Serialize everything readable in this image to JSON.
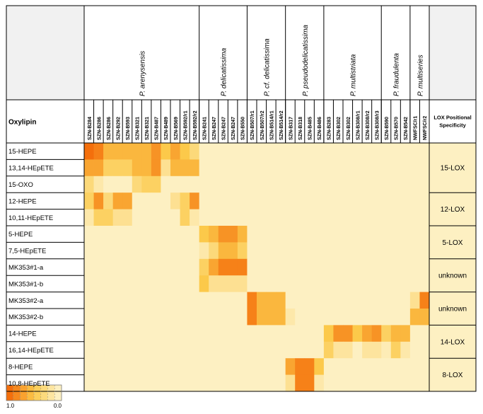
{
  "chart_data": {
    "type": "heatmap",
    "row_header": "Oxylipin",
    "right_header": [
      "LOX Positional",
      "Specificity"
    ],
    "columns": [
      "SZN-B284",
      "SZN-B286",
      "SZN-B286",
      "SZN-B292",
      "SZN-B593",
      "SZN-B321",
      "SZN-B321",
      "SZN-B487",
      "SZN-B489",
      "SZN-B569",
      "SZN-B592/r1",
      "SZN-B592/r2",
      "SZN-B241",
      "SZN-B247",
      "SZN-B247",
      "SZN-B247",
      "SZN-B550",
      "SZN-B507/r1",
      "SZN-B507/r2",
      "SZN-B514/r1",
      "SZN-B514/r2",
      "SZN-B317",
      "SZN-B318",
      "SZN-B485",
      "SZN-B486",
      "SZN-B283",
      "SZN-B302",
      "SZN-B302",
      "SZN-B308/r1",
      "SZN-B308/r2",
      "SZN-B308/r3",
      "SZN-B590",
      "SZN-B570",
      "SZN-B542",
      "NWFSC/r1",
      "NWFSC/r2"
    ],
    "species": [
      {
        "name": "P. arenysensis",
        "start": 0,
        "end": 11
      },
      {
        "name": "P. delicatissima",
        "start": 12,
        "end": 16
      },
      {
        "name": "P. cf. delicatissima",
        "start": 17,
        "end": 20
      },
      {
        "name": "P. pseudodelicatissima",
        "start": 21,
        "end": 24
      },
      {
        "name": "P. multistriata",
        "start": 25,
        "end": 30
      },
      {
        "name": "P. fraudulenta",
        "start": 31,
        "end": 33
      },
      {
        "name": "P. multiseries",
        "start": 34,
        "end": 35
      }
    ],
    "rows": [
      "15-HEPE",
      "13,14-HEpETE",
      "15-OXO",
      "12-HEPE",
      "10,11-HEpETE",
      "5-HEPE",
      "7,5-HEpETE",
      "MK353#1-a",
      "MK353#1-b",
      "MK353#2-a",
      "MK353#2-b",
      "14-HEPE",
      "16,14-HEpETE",
      "8-HEPE",
      "10,8-HEpETE"
    ],
    "groups": [
      {
        "label": "15-LOX",
        "start": 0,
        "end": 2
      },
      {
        "label": "12-LOX",
        "start": 3,
        "end": 4
      },
      {
        "label": "5-LOX",
        "start": 5,
        "end": 6
      },
      {
        "label": "unknown",
        "start": 7,
        "end": 8
      },
      {
        "label": "unknown",
        "start": 9,
        "end": 10
      },
      {
        "label": "14-LOX",
        "start": 11,
        "end": 12
      },
      {
        "label": "8-LOX",
        "start": 13,
        "end": 14
      }
    ],
    "values": [
      [
        1.0,
        0.9,
        0.6,
        0.6,
        0.6,
        0.6,
        0.6,
        0.8,
        0.5,
        0.7,
        0.5,
        0.3,
        0,
        0,
        0,
        0,
        0,
        0,
        0,
        0,
        0,
        0,
        0,
        0,
        0,
        0,
        0,
        0,
        0,
        0,
        0,
        0,
        0,
        0,
        0,
        0
      ],
      [
        0.7,
        0.7,
        0.4,
        0.4,
        0.4,
        0.6,
        0.6,
        0.8,
        0.2,
        0.6,
        0.6,
        0.6,
        0,
        0,
        0,
        0,
        0,
        0,
        0,
        0,
        0,
        0,
        0,
        0,
        0,
        0,
        0,
        0,
        0,
        0,
        0,
        0,
        0,
        0,
        0,
        0
      ],
      [
        0.3,
        0.1,
        0,
        0,
        0,
        0.3,
        0.4,
        0.4,
        0,
        0,
        0,
        0,
        0,
        0,
        0,
        0,
        0,
        0,
        0,
        0,
        0,
        0,
        0,
        0,
        0,
        0,
        0,
        0,
        0,
        0,
        0,
        0,
        0,
        0,
        0,
        0
      ],
      [
        0.4,
        0.8,
        0.3,
        0.7,
        0.7,
        0,
        0,
        0,
        0,
        0.2,
        0.4,
        0.8,
        0,
        0,
        0,
        0,
        0,
        0,
        0,
        0,
        0,
        0,
        0,
        0,
        0,
        0,
        0,
        0,
        0,
        0,
        0,
        0,
        0,
        0,
        0,
        0
      ],
      [
        0.1,
        0.4,
        0.4,
        0.2,
        0.2,
        0,
        0,
        0,
        0,
        0,
        0.4,
        0.1,
        0,
        0,
        0,
        0,
        0,
        0,
        0,
        0,
        0,
        0,
        0,
        0,
        0,
        0,
        0,
        0,
        0,
        0,
        0,
        0,
        0,
        0,
        0,
        0
      ],
      [
        0,
        0,
        0,
        0,
        0,
        0,
        0,
        0,
        0,
        0,
        0,
        0,
        0.5,
        0.6,
        0.8,
        0.8,
        0.6,
        0,
        0,
        0,
        0,
        0,
        0,
        0,
        0,
        0,
        0,
        0,
        0,
        0,
        0,
        0,
        0,
        0,
        0,
        0
      ],
      [
        0,
        0,
        0,
        0,
        0,
        0,
        0,
        0,
        0,
        0,
        0,
        0,
        0.1,
        0.3,
        0.6,
        0.6,
        0.4,
        0,
        0,
        0,
        0,
        0,
        0,
        0,
        0,
        0,
        0,
        0,
        0,
        0,
        0,
        0,
        0,
        0,
        0,
        0
      ],
      [
        0,
        0,
        0,
        0,
        0,
        0,
        0,
        0,
        0,
        0,
        0,
        0,
        0.4,
        0.7,
        0.9,
        0.9,
        0.9,
        0,
        0,
        0,
        0,
        0,
        0,
        0,
        0,
        0,
        0,
        0,
        0,
        0,
        0,
        0,
        0,
        0,
        0,
        0
      ],
      [
        0,
        0,
        0,
        0,
        0,
        0,
        0,
        0,
        0,
        0,
        0,
        0,
        0.5,
        0.2,
        0.2,
        0.2,
        0.2,
        0,
        0,
        0,
        0,
        0,
        0,
        0,
        0,
        0,
        0,
        0,
        0,
        0,
        0,
        0,
        0,
        0,
        0,
        0
      ],
      [
        0,
        0,
        0,
        0,
        0,
        0,
        0,
        0,
        0,
        0,
        0,
        0,
        0,
        0,
        0,
        0,
        0,
        0.9,
        0.6,
        0.6,
        0.6,
        0,
        0,
        0,
        0,
        0,
        0,
        0,
        0,
        0,
        0,
        0,
        0,
        0,
        0.2,
        0.9
      ],
      [
        0,
        0,
        0,
        0,
        0,
        0,
        0,
        0,
        0,
        0,
        0,
        0,
        0,
        0,
        0,
        0,
        0,
        0.9,
        0.6,
        0.6,
        0.6,
        0.1,
        0,
        0,
        0,
        0,
        0,
        0,
        0,
        0,
        0,
        0,
        0,
        0,
        0.6,
        0.6
      ],
      [
        0,
        0,
        0,
        0,
        0,
        0,
        0,
        0,
        0,
        0,
        0,
        0,
        0,
        0,
        0,
        0,
        0,
        0,
        0,
        0,
        0,
        0,
        0,
        0,
        0,
        0.5,
        0.8,
        0.8,
        0.5,
        0.7,
        0.8,
        0.4,
        0.6,
        0.6,
        0,
        0
      ],
      [
        0,
        0,
        0,
        0,
        0,
        0,
        0,
        0,
        0,
        0,
        0,
        0,
        0,
        0,
        0,
        0,
        0,
        0,
        0,
        0,
        0,
        0,
        0,
        0,
        0,
        0.4,
        0.15,
        0.15,
        0,
        0.15,
        0.15,
        0.05,
        0.4,
        0.1,
        0,
        0
      ],
      [
        0,
        0,
        0,
        0,
        0,
        0,
        0,
        0,
        0,
        0,
        0,
        0,
        0,
        0,
        0,
        0,
        0,
        0,
        0,
        0,
        0,
        0.7,
        0.9,
        0.9,
        0.5,
        0,
        0,
        0,
        0,
        0,
        0,
        0,
        0,
        0,
        0,
        0
      ],
      [
        0,
        0,
        0,
        0,
        0,
        0,
        0,
        0,
        0,
        0,
        0,
        0,
        0,
        0,
        0,
        0,
        0,
        0,
        0,
        0,
        0,
        0.2,
        0.9,
        0.9,
        0.1,
        0,
        0,
        0,
        0,
        0,
        0,
        0,
        0,
        0,
        0,
        0
      ]
    ],
    "colorbar": {
      "min_label": "0.0",
      "max_label": "1.0",
      "min": 0,
      "max": 1
    },
    "colors": {
      "low": "#fdf0c2",
      "mid": "#fcc94a",
      "high": "#f46f0c",
      "grid": "#000000",
      "header_bg": "#f1f1f1"
    }
  }
}
